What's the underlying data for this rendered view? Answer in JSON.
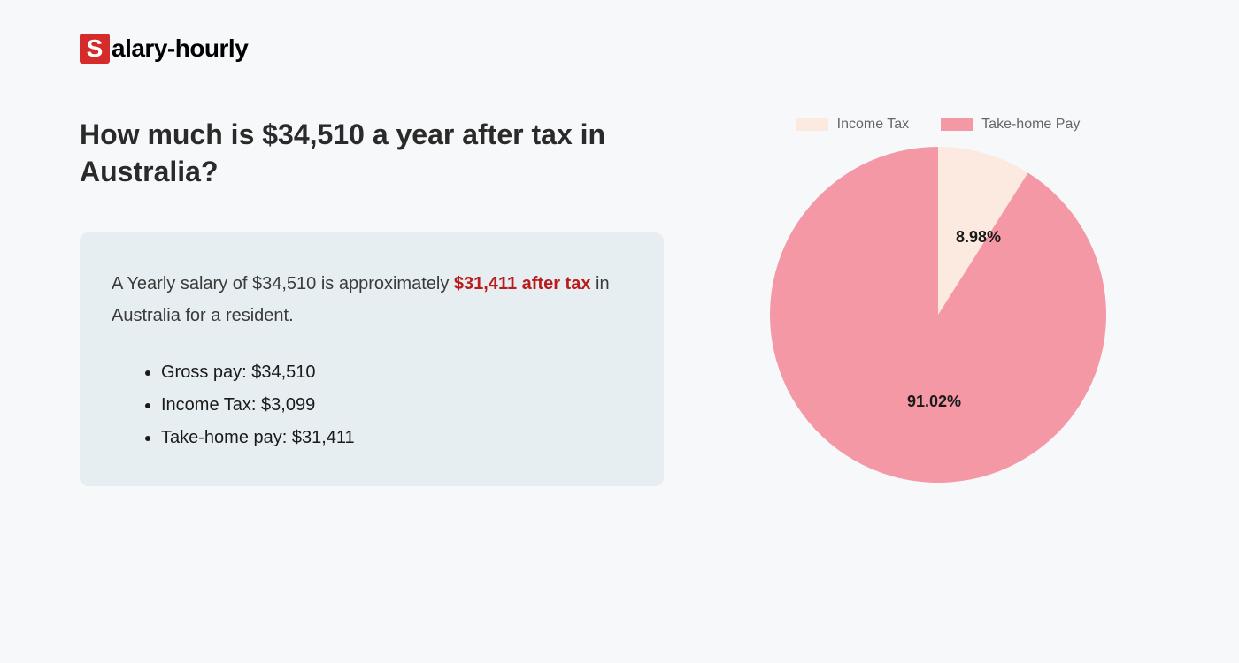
{
  "logo": {
    "badge_letter": "S",
    "text": "alary-hourly",
    "badge_bg": "#d52b2b",
    "badge_fg": "#ffffff"
  },
  "heading": "How much is $34,510 a year after tax in Australia?",
  "summary": {
    "prefix": "A Yearly salary of $34,510 is approximately ",
    "highlight": "$31,411 after tax",
    "suffix": " in Australia for a resident.",
    "highlight_color": "#b91c1c",
    "box_bg": "#e7eef1"
  },
  "bullets": [
    "Gross pay: $34,510",
    "Income Tax: $3,099",
    "Take-home pay: $31,411"
  ],
  "chart": {
    "type": "pie",
    "background_color": "#f6f8fa",
    "legend_position": "top",
    "legend_fontsize": 16,
    "legend_color": "#666666",
    "label_fontsize": 18,
    "label_fontweight": 700,
    "label_color": "#1a1a1a",
    "slices": [
      {
        "name": "Income Tax",
        "value": 8.98,
        "label": "8.98%",
        "color": "#fce9e0"
      },
      {
        "name": "Take-home Pay",
        "value": 91.02,
        "label": "91.02%",
        "color": "#f598a6"
      }
    ],
    "radius": 190,
    "start_angle_deg": 0
  }
}
